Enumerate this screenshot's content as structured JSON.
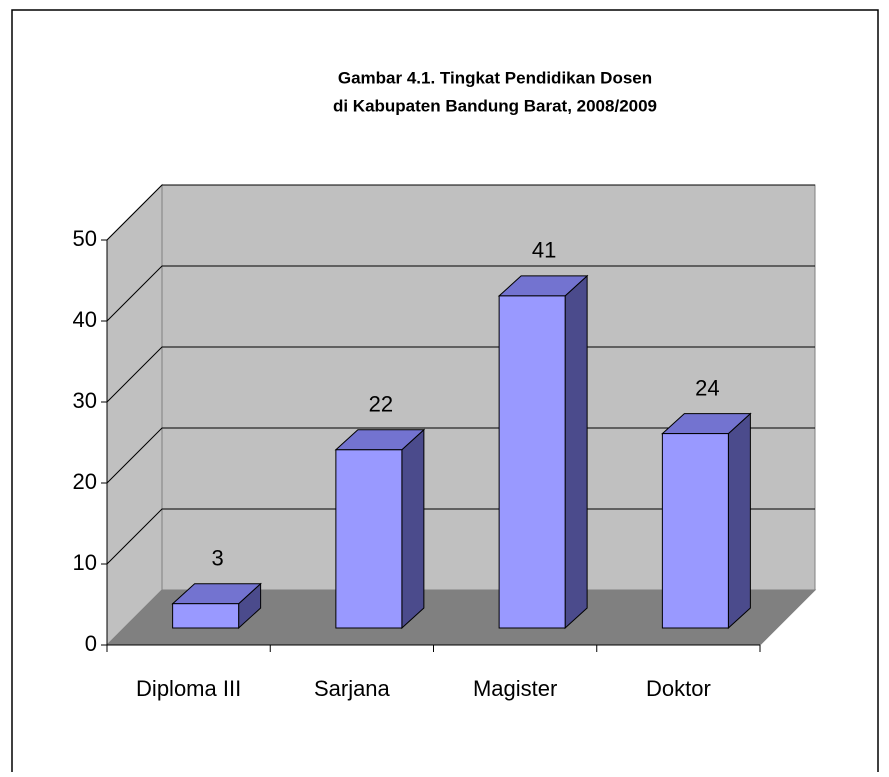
{
  "chart_data": {
    "type": "bar",
    "title": "Gambar 4.1. Tingkat Pendidikan Dosen",
    "subtitle": "di Kabupaten Bandung Barat, 2008/2009",
    "categories": [
      "Diploma III",
      "Sarjana",
      "Magister",
      "Doktor"
    ],
    "values": [
      3,
      22,
      41,
      24
    ],
    "color": "#9999ff",
    "ylim": [
      0,
      50
    ],
    "yticks": [
      0,
      10,
      20,
      30,
      40,
      50
    ],
    "grid": true
  }
}
